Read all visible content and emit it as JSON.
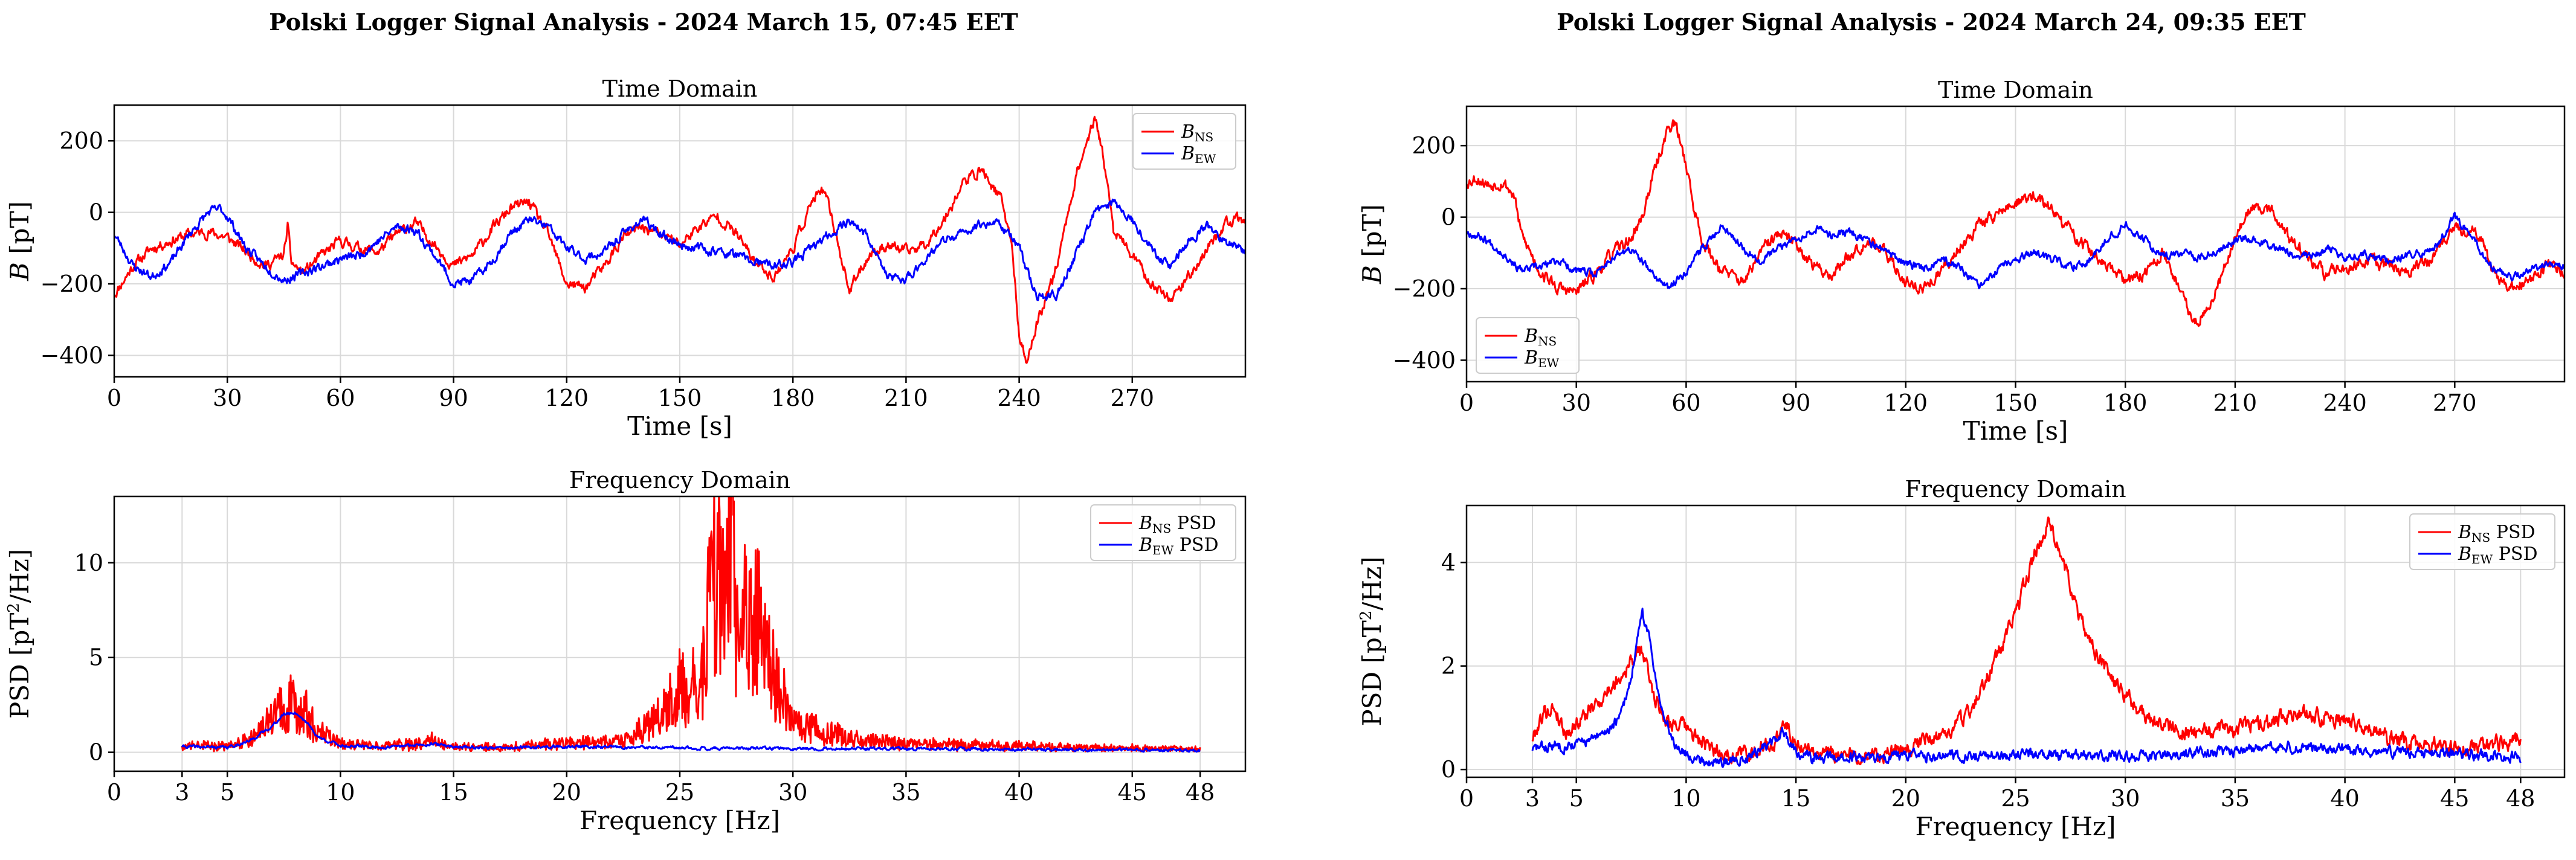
{
  "figure_titles": [
    "Polski Logger Signal Analysis - 2024 March 15, 07:45 EET",
    "Polski Logger Signal Analysis - 2024 March 24, 09:35 EET"
  ],
  "colors": {
    "ns": "#ff0000",
    "ew": "#0000ff"
  },
  "chart_data": [
    {
      "id": "left-time",
      "type": "line",
      "title": "Time Domain",
      "xlabel": "Time [s]",
      "ylabel": "B [pT]",
      "xlim": [
        0,
        300
      ],
      "ylim": [
        -460,
        300
      ],
      "xticks": [
        0,
        30,
        60,
        90,
        120,
        150,
        180,
        210,
        240,
        270
      ],
      "yticks": [
        -400,
        -200,
        0,
        200
      ],
      "legend": {
        "position": "top-right",
        "entries": [
          "B_NS",
          "B_EW"
        ]
      },
      "series": [
        {
          "name": "B_NS",
          "color": "#ff0000",
          "noise": 12,
          "seed": 11,
          "x": [
            0,
            5,
            10,
            15,
            20,
            25,
            30,
            35,
            40,
            45,
            46,
            47,
            50,
            55,
            60,
            65,
            70,
            75,
            80,
            85,
            90,
            95,
            100,
            105,
            110,
            115,
            120,
            125,
            130,
            135,
            140,
            145,
            150,
            155,
            160,
            165,
            170,
            175,
            180,
            185,
            188,
            190,
            195,
            200,
            205,
            210,
            215,
            220,
            225,
            230,
            235,
            238,
            240,
            242,
            245,
            250,
            255,
            258,
            260,
            262,
            265,
            270,
            275,
            280,
            285,
            290,
            295,
            300
          ],
          "y": [
            -230,
            -150,
            -100,
            -80,
            -60,
            -55,
            -70,
            -110,
            -150,
            -120,
            -40,
            -140,
            -170,
            -120,
            -80,
            -100,
            -110,
            -60,
            -30,
            -90,
            -150,
            -120,
            -50,
            10,
            30,
            -60,
            -200,
            -210,
            -150,
            -70,
            -40,
            -60,
            -90,
            -40,
            -10,
            -60,
            -140,
            -180,
            -100,
            30,
            60,
            0,
            -220,
            -120,
            -90,
            -110,
            -90,
            -20,
            80,
            120,
            40,
            -80,
            -350,
            -420,
            -300,
            -150,
            100,
            200,
            260,
            180,
            -50,
            -120,
            -200,
            -240,
            -180,
            -100,
            -30,
            -20
          ]
        },
        {
          "name": "B_EW",
          "color": "#0000ff",
          "noise": 10,
          "seed": 23,
          "x": [
            0,
            5,
            10,
            15,
            20,
            25,
            28,
            30,
            35,
            40,
            45,
            50,
            55,
            60,
            65,
            70,
            75,
            80,
            85,
            90,
            95,
            100,
            105,
            110,
            115,
            120,
            125,
            130,
            135,
            140,
            145,
            150,
            155,
            160,
            165,
            170,
            175,
            180,
            185,
            190,
            195,
            200,
            205,
            210,
            215,
            220,
            225,
            230,
            235,
            240,
            245,
            250,
            255,
            260,
            265,
            270,
            275,
            280,
            285,
            290,
            295,
            300
          ],
          "y": [
            -60,
            -150,
            -180,
            -140,
            -60,
            0,
            10,
            -10,
            -100,
            -150,
            -190,
            -170,
            -150,
            -130,
            -120,
            -80,
            -40,
            -50,
            -120,
            -200,
            -190,
            -140,
            -60,
            -20,
            -40,
            -100,
            -130,
            -110,
            -60,
            -20,
            -60,
            -90,
            -100,
            -110,
            -120,
            -140,
            -150,
            -140,
            -100,
            -60,
            -20,
            -70,
            -180,
            -190,
            -130,
            -80,
            -60,
            -30,
            -30,
            -100,
            -240,
            -230,
            -120,
            0,
            30,
            -20,
            -100,
            -150,
            -80,
            -40,
            -80,
            -110
          ]
        }
      ]
    },
    {
      "id": "left-freq",
      "type": "line",
      "title": "Frequency Domain",
      "xlabel": "Frequency [Hz]",
      "ylabel": "PSD [pT²/Hz]",
      "xlim": [
        0,
        50
      ],
      "ylim": [
        -1.0,
        13.5
      ],
      "xticks": [
        0,
        3,
        5,
        10,
        15,
        20,
        25,
        30,
        35,
        40,
        45,
        48
      ],
      "yticks": [
        0,
        5,
        10
      ],
      "legend": {
        "position": "top-right",
        "entries": [
          "B_NS PSD",
          "B_EW PSD"
        ]
      },
      "series": [
        {
          "name": "B_NS PSD",
          "color": "#ff0000",
          "noise": 0.25,
          "seed": 37,
          "spiky": true,
          "x": [
            3,
            5,
            6,
            7,
            7.5,
            8,
            8.5,
            9,
            10,
            12,
            14,
            15,
            17,
            20,
            22,
            23,
            24,
            25,
            26,
            26.5,
            27,
            27.2,
            27.5,
            28,
            28.5,
            29,
            30,
            31,
            33,
            35,
            38,
            40,
            45,
            48
          ],
          "y": [
            0.35,
            0.3,
            0.6,
            1.6,
            2.3,
            2.6,
            2.0,
            1.0,
            0.4,
            0.3,
            0.6,
            0.3,
            0.25,
            0.45,
            0.5,
            0.9,
            1.8,
            3.2,
            3.5,
            9.5,
            6.5,
            12.7,
            6.0,
            6.8,
            6.6,
            4.2,
            1.6,
            1.2,
            0.6,
            0.45,
            0.35,
            0.3,
            0.2,
            0.15
          ]
        },
        {
          "name": "B_EW PSD",
          "color": "#0000ff",
          "noise": 0.06,
          "seed": 41,
          "spiky": false,
          "x": [
            3,
            5,
            6,
            7,
            7.5,
            8,
            8.5,
            9,
            10,
            12,
            14,
            15,
            17,
            20,
            25,
            30,
            35,
            40,
            45,
            48
          ],
          "y": [
            0.3,
            0.25,
            0.6,
            1.4,
            2.0,
            2.1,
            1.6,
            0.8,
            0.35,
            0.25,
            0.45,
            0.3,
            0.22,
            0.3,
            0.22,
            0.2,
            0.18,
            0.15,
            0.12,
            0.1
          ]
        }
      ]
    },
    {
      "id": "right-time",
      "type": "line",
      "title": "Time Domain",
      "xlabel": "Time [s]",
      "ylabel": "B [pT]",
      "xlim": [
        0,
        300
      ],
      "ylim": [
        -460,
        310
      ],
      "xticks": [
        0,
        30,
        60,
        90,
        120,
        150,
        180,
        210,
        240,
        270
      ],
      "yticks": [
        -400,
        -200,
        0,
        200
      ],
      "legend": {
        "position": "bottom-left",
        "entries": [
          "B_NS",
          "B_EW"
        ]
      },
      "series": [
        {
          "name": "B_NS",
          "color": "#ff0000",
          "noise": 14,
          "seed": 53,
          "x": [
            0,
            3,
            6,
            10,
            13,
            15,
            20,
            25,
            30,
            35,
            40,
            45,
            48,
            50,
            52,
            55,
            57,
            60,
            62,
            65,
            70,
            75,
            78,
            80,
            85,
            90,
            95,
            100,
            105,
            110,
            115,
            120,
            125,
            130,
            135,
            140,
            145,
            150,
            155,
            160,
            165,
            170,
            175,
            180,
            185,
            190,
            195,
            198,
            200,
            205,
            210,
            215,
            220,
            225,
            230,
            235,
            240,
            245,
            250,
            255,
            260,
            265,
            270,
            275,
            278,
            280,
            285,
            290,
            295,
            300
          ],
          "y": [
            100,
            110,
            90,
            100,
            60,
            -50,
            -150,
            -200,
            -210,
            -160,
            -100,
            -60,
            0,
            80,
            150,
            250,
            260,
            150,
            30,
            -80,
            -150,
            -180,
            -150,
            -100,
            -50,
            -70,
            -140,
            -160,
            -100,
            -60,
            -110,
            -180,
            -200,
            -150,
            -80,
            -20,
            10,
            40,
            60,
            20,
            -40,
            -90,
            -140,
            -180,
            -160,
            -100,
            -200,
            -280,
            -290,
            -200,
            -50,
            30,
            20,
            -60,
            -120,
            -160,
            -140,
            -120,
            -130,
            -150,
            -140,
            -100,
            -40,
            -30,
            -80,
            -150,
            -200,
            -180,
            -140,
            -150
          ]
        },
        {
          "name": "B_EW",
          "color": "#0000ff",
          "noise": 9,
          "seed": 67,
          "x": [
            0,
            5,
            10,
            15,
            20,
            25,
            30,
            35,
            40,
            45,
            50,
            55,
            60,
            65,
            70,
            75,
            80,
            85,
            90,
            95,
            100,
            105,
            110,
            115,
            120,
            125,
            130,
            135,
            140,
            145,
            150,
            155,
            160,
            165,
            170,
            175,
            180,
            185,
            190,
            195,
            200,
            205,
            210,
            215,
            220,
            225,
            230,
            235,
            240,
            245,
            250,
            255,
            260,
            265,
            270,
            275,
            280,
            285,
            290,
            295,
            300
          ],
          "y": [
            -40,
            -60,
            -100,
            -150,
            -140,
            -120,
            -150,
            -160,
            -110,
            -90,
            -150,
            -200,
            -150,
            -80,
            -20,
            -80,
            -120,
            -90,
            -60,
            -30,
            -50,
            -40,
            -70,
            -100,
            -130,
            -140,
            -120,
            -140,
            -200,
            -150,
            -120,
            -100,
            -120,
            -140,
            -120,
            -60,
            -20,
            -60,
            -110,
            -100,
            -110,
            -100,
            -60,
            -60,
            -80,
            -100,
            -110,
            -90,
            -110,
            -100,
            -120,
            -110,
            -100,
            -80,
            0,
            -60,
            -140,
            -170,
            -150,
            -130,
            -140
          ]
        }
      ]
    },
    {
      "id": "right-freq",
      "type": "line",
      "title": "Frequency Domain",
      "xlabel": "Frequency [Hz]",
      "ylabel": "PSD [pT²/Hz]",
      "xlim": [
        0,
        50
      ],
      "ylim": [
        -0.15,
        5.1
      ],
      "xticks": [
        0,
        3,
        5,
        10,
        15,
        20,
        25,
        30,
        35,
        40,
        45,
        48
      ],
      "yticks": [
        0,
        2,
        4
      ],
      "legend": {
        "position": "top-right",
        "entries": [
          "B_NS PSD",
          "B_EW PSD"
        ]
      },
      "series": [
        {
          "name": "B_NS PSD",
          "color": "#ff0000",
          "noise": 0.12,
          "seed": 79,
          "spiky": false,
          "x": [
            3,
            3.5,
            4,
            4.5,
            5,
            6,
            7,
            7.5,
            8,
            8.5,
            9,
            9.5,
            10,
            11,
            12,
            13,
            14,
            14.5,
            15,
            16,
            18,
            20,
            21,
            22,
            23,
            24,
            25,
            26,
            26.5,
            27,
            28,
            29,
            30,
            31,
            32,
            33,
            35,
            37,
            38,
            39,
            40,
            41,
            42,
            44,
            46,
            48
          ],
          "y": [
            0.6,
            1.1,
            1.2,
            0.7,
            0.9,
            1.3,
            1.8,
            2.1,
            2.3,
            1.5,
            1.0,
            0.9,
            0.8,
            0.4,
            0.3,
            0.35,
            0.5,
            0.9,
            0.5,
            0.3,
            0.25,
            0.35,
            0.6,
            0.7,
            1.2,
            2.0,
            3.0,
            4.3,
            4.8,
            4.3,
            2.8,
            2.0,
            1.4,
            1.0,
            0.8,
            0.7,
            0.8,
            0.95,
            1.1,
            1.0,
            0.95,
            0.8,
            0.6,
            0.45,
            0.4,
            0.6
          ]
        },
        {
          "name": "B_EW PSD",
          "color": "#0000ff",
          "noise": 0.08,
          "seed": 83,
          "spiky": false,
          "x": [
            3,
            5,
            6,
            7,
            7.5,
            8,
            8.3,
            8.6,
            9,
            9.5,
            10,
            11,
            12,
            13,
            14,
            14.5,
            15,
            16,
            18,
            20,
            25,
            30,
            35,
            38,
            40,
            42,
            45,
            48
          ],
          "y": [
            0.4,
            0.5,
            0.6,
            1.0,
            1.8,
            3.0,
            2.6,
            1.8,
            1.0,
            0.5,
            0.3,
            0.15,
            0.15,
            0.3,
            0.55,
            0.7,
            0.35,
            0.2,
            0.25,
            0.25,
            0.28,
            0.25,
            0.35,
            0.45,
            0.4,
            0.35,
            0.3,
            0.25
          ]
        }
      ]
    }
  ]
}
